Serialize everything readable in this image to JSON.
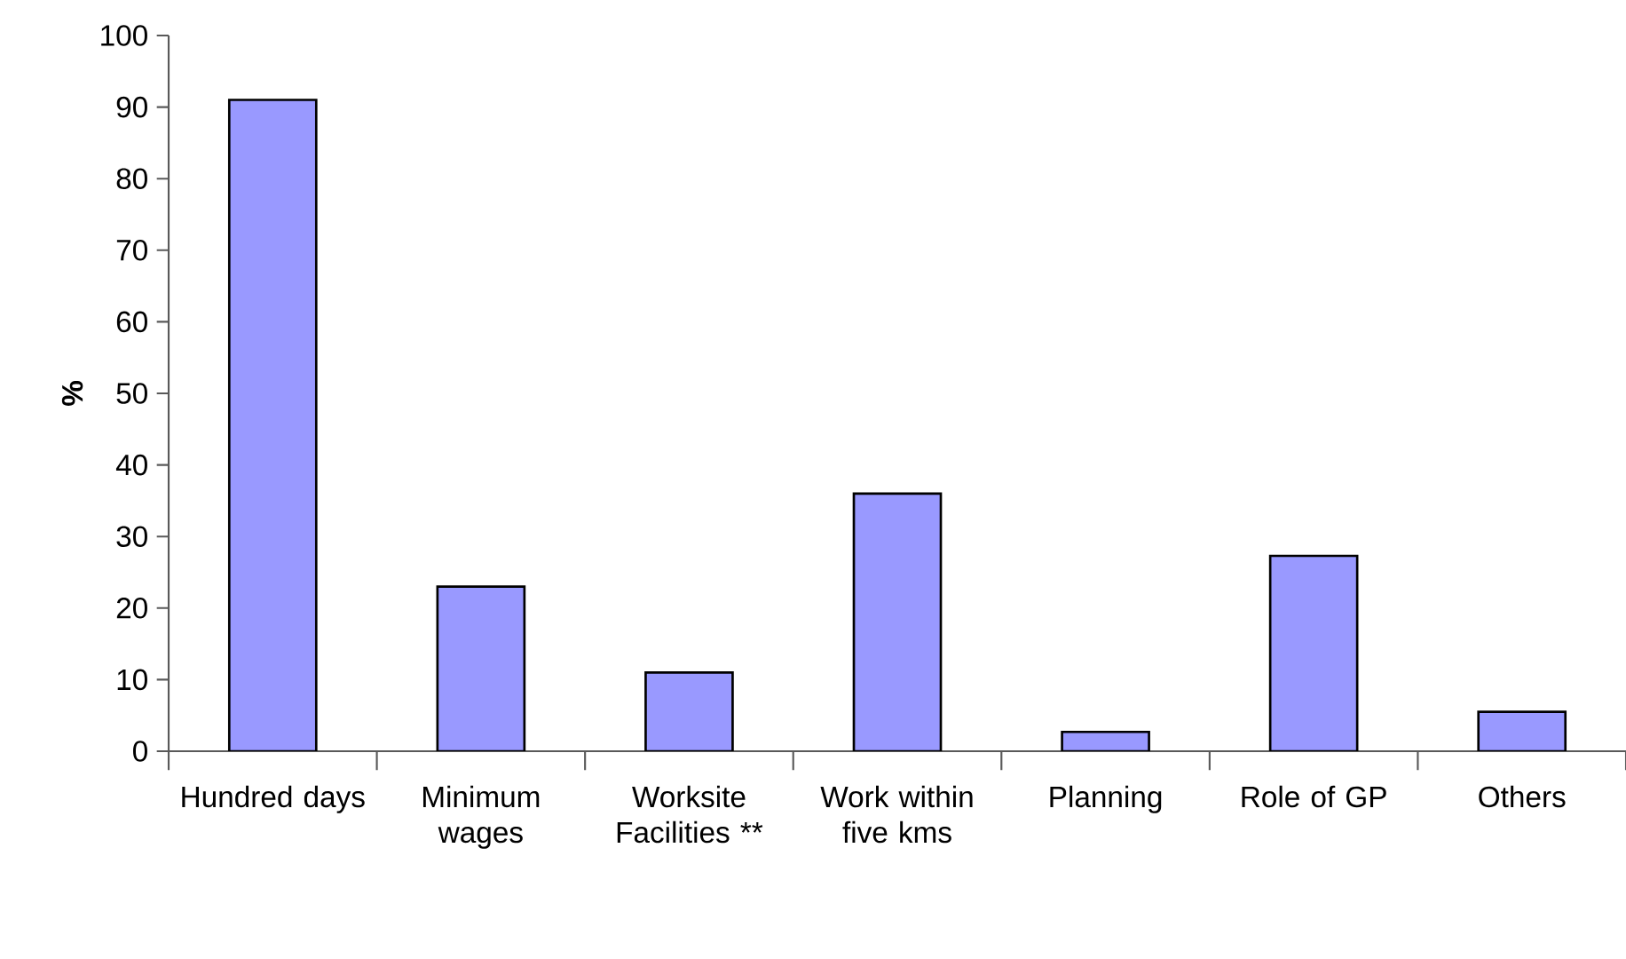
{
  "chart_data": {
    "type": "bar",
    "ylabel": "%",
    "categories": [
      "Hundred days",
      "Minimum wages",
      "Worksite Facilities **",
      "Work within five kms",
      "Planning",
      "Role of GP",
      "Others"
    ],
    "values": [
      91,
      23,
      11,
      36,
      2.7,
      27.3,
      5.5
    ],
    "color": "#9999ff",
    "ylim": [
      0,
      100
    ],
    "yticks": [
      0,
      10,
      20,
      30,
      40,
      50,
      60,
      70,
      80,
      90,
      100
    ],
    "grid": false
  }
}
